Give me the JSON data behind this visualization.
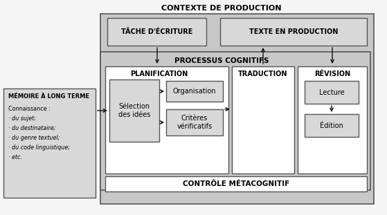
{
  "title": "CONTEXTE DE PRODUCTION",
  "bg_color": "#f5f5f5",
  "gray_outer": "#c8c8c8",
  "gray_header": "#c0c0c0",
  "gray_box": "#d8d8d8",
  "white": "#ffffff",
  "text_color": "#000000",
  "tache_label": "TÂCHE D'ÉCRITURE",
  "texte_label": "TEXTE EN PRODUCTION",
  "processus_label": "PROCESSUS COGNITIFS",
  "planification_label": "PLANIFICATION",
  "traduction_label": "TRADUCTION",
  "revision_label": "RÉVISION",
  "selection_label": "Sélection\ndes idées",
  "organisation_label": "Organisation",
  "criteres_label": "Critères\nvérificatifs",
  "lecture_label": "Lecture",
  "edition_label": "Édition",
  "controle_label": "CONTRÔLE MÉTACOGNITIF",
  "memoire_title": "MÉMOIRE À LONG TERME",
  "memoire_line1": "Connaissance :",
  "memoire_line2": "· du sujet;",
  "memoire_line3": "· du destinataire;",
  "memoire_line4": "· du genre textuel;",
  "memoire_line5": "· du code linguistique;",
  "memoire_line6": "· etc."
}
